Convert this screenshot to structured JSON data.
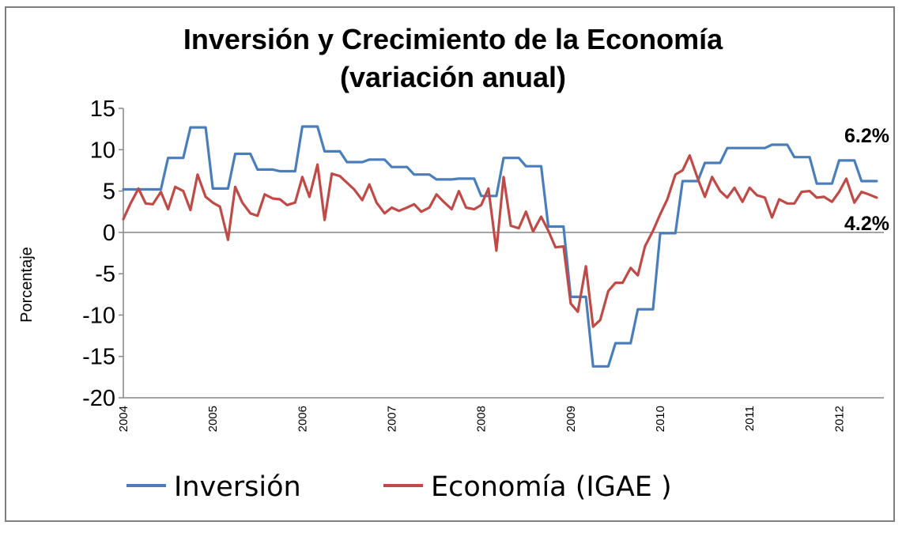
{
  "chart_data": {
    "type": "line",
    "title": "Inversión y Crecimiento de la Economía",
    "subtitle": "(variación anual)",
    "xlabel": "",
    "ylabel": "Porcentaje",
    "ylim": [
      -20,
      15
    ],
    "yticks": [
      "15",
      "10",
      "5",
      "0",
      "-5",
      "-10",
      "-15",
      "-20"
    ],
    "x_tick_labels": [
      "2004",
      "2005",
      "2006",
      "2007",
      "2008",
      "2009",
      "2010",
      "2011",
      "2012"
    ],
    "x_start_year": 2004,
    "x_end_year": 2012.5,
    "grid": false,
    "zero_line": true,
    "legend_position": "bottom",
    "series": [
      {
        "name": "Inversión",
        "color": "#4a7ebb",
        "points": [
          [
            2004.0,
            5.2
          ],
          [
            2004.42,
            5.2
          ],
          [
            2004.5,
            9.0
          ],
          [
            2004.67,
            9.0
          ],
          [
            2004.75,
            12.7
          ],
          [
            2004.92,
            12.7
          ],
          [
            2005.0,
            5.3
          ],
          [
            2005.17,
            5.3
          ],
          [
            2005.25,
            9.5
          ],
          [
            2005.42,
            9.5
          ],
          [
            2005.5,
            7.6
          ],
          [
            2005.67,
            7.6
          ],
          [
            2005.75,
            7.4
          ],
          [
            2005.92,
            7.4
          ],
          [
            2006.0,
            12.8
          ],
          [
            2006.17,
            12.8
          ],
          [
            2006.25,
            9.8
          ],
          [
            2006.42,
            9.8
          ],
          [
            2006.5,
            8.5
          ],
          [
            2006.67,
            8.5
          ],
          [
            2006.75,
            8.8
          ],
          [
            2006.92,
            8.8
          ],
          [
            2007.0,
            7.9
          ],
          [
            2007.17,
            7.9
          ],
          [
            2007.25,
            7.0
          ],
          [
            2007.42,
            7.0
          ],
          [
            2007.5,
            6.4
          ],
          [
            2007.67,
            6.4
          ],
          [
            2007.75,
            6.5
          ],
          [
            2007.92,
            6.5
          ],
          [
            2008.0,
            4.4
          ],
          [
            2008.17,
            4.4
          ],
          [
            2008.25,
            9.0
          ],
          [
            2008.42,
            9.0
          ],
          [
            2008.5,
            8.0
          ],
          [
            2008.67,
            8.0
          ],
          [
            2008.75,
            0.7
          ],
          [
            2008.92,
            0.7
          ],
          [
            2009.0,
            -7.8
          ],
          [
            2009.17,
            -7.8
          ],
          [
            2009.25,
            -16.2
          ],
          [
            2009.42,
            -16.2
          ],
          [
            2009.5,
            -13.4
          ],
          [
            2009.67,
            -13.4
          ],
          [
            2009.75,
            -9.3
          ],
          [
            2009.92,
            -9.3
          ],
          [
            2010.0,
            -0.1
          ],
          [
            2010.17,
            -0.1
          ],
          [
            2010.25,
            6.2
          ],
          [
            2010.42,
            6.2
          ],
          [
            2010.5,
            8.4
          ],
          [
            2010.67,
            8.4
          ],
          [
            2010.75,
            10.2
          ],
          [
            2010.92,
            10.2
          ],
          [
            2011.0,
            10.2
          ],
          [
            2011.17,
            10.2
          ],
          [
            2011.25,
            10.6
          ],
          [
            2011.42,
            10.6
          ],
          [
            2011.5,
            9.1
          ],
          [
            2011.67,
            9.1
          ],
          [
            2011.75,
            5.9
          ],
          [
            2011.92,
            5.9
          ],
          [
            2012.0,
            8.7
          ],
          [
            2012.17,
            8.7
          ],
          [
            2012.25,
            6.2
          ],
          [
            2012.42,
            6.2
          ]
        ]
      },
      {
        "name": "Economía (IGAE )",
        "color": "#be4b48",
        "points": [
          [
            2004.0,
            1.6
          ],
          [
            2004.08,
            3.5
          ],
          [
            2004.17,
            5.3
          ],
          [
            2004.25,
            3.5
          ],
          [
            2004.33,
            3.4
          ],
          [
            2004.42,
            4.9
          ],
          [
            2004.5,
            2.8
          ],
          [
            2004.58,
            5.5
          ],
          [
            2004.67,
            5.0
          ],
          [
            2004.75,
            2.7
          ],
          [
            2004.83,
            7.0
          ],
          [
            2004.92,
            4.3
          ],
          [
            2005.0,
            3.6
          ],
          [
            2005.08,
            3.1
          ],
          [
            2005.17,
            -0.9
          ],
          [
            2005.25,
            5.5
          ],
          [
            2005.33,
            3.6
          ],
          [
            2005.42,
            2.3
          ],
          [
            2005.5,
            2.0
          ],
          [
            2005.58,
            4.6
          ],
          [
            2005.67,
            4.1
          ],
          [
            2005.75,
            4.0
          ],
          [
            2005.83,
            3.3
          ],
          [
            2005.92,
            3.6
          ],
          [
            2006.0,
            6.7
          ],
          [
            2006.08,
            4.3
          ],
          [
            2006.17,
            8.2
          ],
          [
            2006.25,
            1.5
          ],
          [
            2006.33,
            7.1
          ],
          [
            2006.42,
            6.8
          ],
          [
            2006.5,
            6.0
          ],
          [
            2006.58,
            5.2
          ],
          [
            2006.67,
            3.9
          ],
          [
            2006.75,
            5.8
          ],
          [
            2006.83,
            3.6
          ],
          [
            2006.92,
            2.3
          ],
          [
            2007.0,
            3.0
          ],
          [
            2007.08,
            2.6
          ],
          [
            2007.17,
            3.0
          ],
          [
            2007.25,
            3.4
          ],
          [
            2007.33,
            2.5
          ],
          [
            2007.42,
            3.0
          ],
          [
            2007.5,
            4.6
          ],
          [
            2007.58,
            3.7
          ],
          [
            2007.67,
            2.8
          ],
          [
            2007.75,
            5.0
          ],
          [
            2007.83,
            3.0
          ],
          [
            2007.92,
            2.8
          ],
          [
            2008.0,
            3.3
          ],
          [
            2008.08,
            5.3
          ],
          [
            2008.17,
            -2.2
          ],
          [
            2008.25,
            6.7
          ],
          [
            2008.33,
            0.8
          ],
          [
            2008.42,
            0.5
          ],
          [
            2008.5,
            2.5
          ],
          [
            2008.58,
            0.1
          ],
          [
            2008.67,
            1.9
          ],
          [
            2008.75,
            0.2
          ],
          [
            2008.83,
            -1.8
          ],
          [
            2008.92,
            -1.7
          ],
          [
            2009.0,
            -8.6
          ],
          [
            2009.08,
            -9.6
          ],
          [
            2009.17,
            -4.1
          ],
          [
            2009.25,
            -11.4
          ],
          [
            2009.33,
            -10.6
          ],
          [
            2009.42,
            -7.1
          ],
          [
            2009.5,
            -6.1
          ],
          [
            2009.58,
            -6.1
          ],
          [
            2009.67,
            -4.3
          ],
          [
            2009.75,
            -5.2
          ],
          [
            2009.83,
            -1.7
          ],
          [
            2009.92,
            0.2
          ],
          [
            2010.0,
            2.2
          ],
          [
            2010.08,
            4.0
          ],
          [
            2010.17,
            7.0
          ],
          [
            2010.25,
            7.5
          ],
          [
            2010.33,
            9.3
          ],
          [
            2010.42,
            6.5
          ],
          [
            2010.5,
            4.3
          ],
          [
            2010.58,
            6.7
          ],
          [
            2010.67,
            5.0
          ],
          [
            2010.75,
            4.2
          ],
          [
            2010.83,
            5.4
          ],
          [
            2010.92,
            3.7
          ],
          [
            2011.0,
            5.4
          ],
          [
            2011.08,
            4.5
          ],
          [
            2011.17,
            4.2
          ],
          [
            2011.25,
            1.8
          ],
          [
            2011.33,
            4.0
          ],
          [
            2011.42,
            3.5
          ],
          [
            2011.5,
            3.5
          ],
          [
            2011.58,
            4.9
          ],
          [
            2011.67,
            5.0
          ],
          [
            2011.75,
            4.2
          ],
          [
            2011.83,
            4.3
          ],
          [
            2011.92,
            3.7
          ],
          [
            2012.0,
            4.9
          ],
          [
            2012.08,
            6.5
          ],
          [
            2012.17,
            3.6
          ],
          [
            2012.25,
            4.9
          ],
          [
            2012.33,
            4.6
          ],
          [
            2012.42,
            4.2
          ]
        ]
      }
    ],
    "annotations": [
      {
        "text": "6.2%",
        "y": 6.2,
        "series": "Inversión"
      },
      {
        "text": "4.2%",
        "y": 4.2,
        "series": "Economía (IGAE )"
      }
    ]
  }
}
